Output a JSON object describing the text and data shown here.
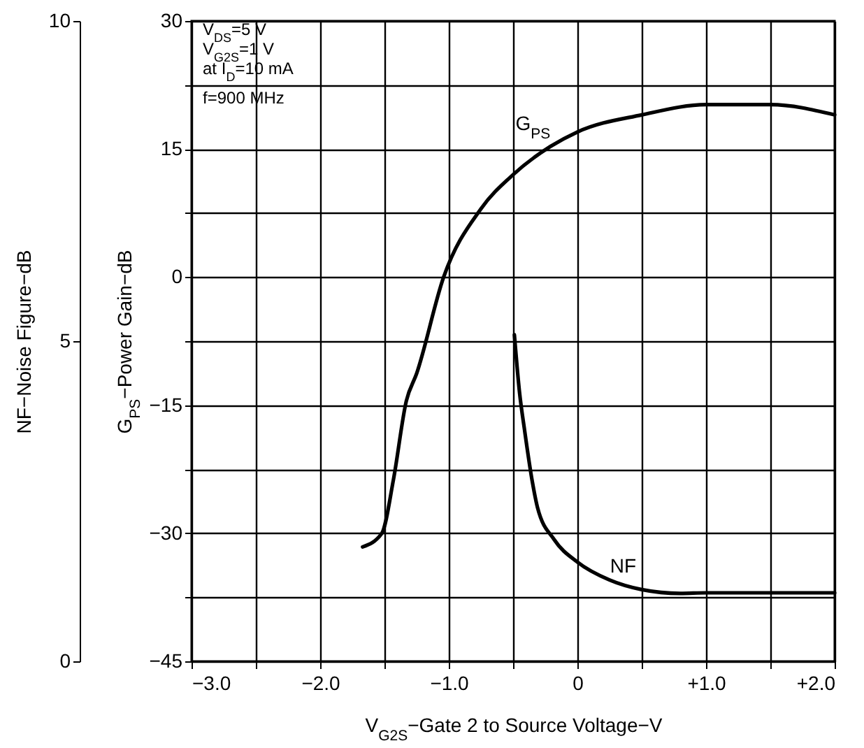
{
  "chart_data": {
    "type": "line",
    "xlabel": "V$_{G2S}$−Gate 2 to Source Voltage−V",
    "ylabel": "G$_{PS}$−Power Gain−dB",
    "y2label": "NF−Noise Figure−dB",
    "annotations": [
      "V$_{DS}$=5 V",
      "V$_{G2S}$=1 V",
      "at  I$_{D}$=10 mA",
      "f=900 MHz"
    ],
    "xlim": [
      -3,
      2
    ],
    "xticks": [
      {
        "value": -3,
        "label": "−3.0"
      },
      {
        "value": -2.5,
        "label": null
      },
      {
        "value": -2,
        "label": "−2.0"
      },
      {
        "value": -1.5,
        "label": null
      },
      {
        "value": -1,
        "label": "−1.0"
      },
      {
        "value": -0.5,
        "label": null
      },
      {
        "value": 0,
        "label": "0"
      },
      {
        "value": 0.5,
        "label": null
      },
      {
        "value": 1,
        "label": "+1.0"
      },
      {
        "value": 1.5,
        "label": null
      },
      {
        "value": 2,
        "label": "+2.0"
      }
    ],
    "ylim": [
      -45,
      30
    ],
    "yticks": [
      {
        "value": -45,
        "label": "−45"
      },
      {
        "value": -37.5,
        "label": null
      },
      {
        "value": -30,
        "label": "−30"
      },
      {
        "value": -22.5,
        "label": null
      },
      {
        "value": -15,
        "label": "−15"
      },
      {
        "value": -7.5,
        "label": null
      },
      0,
      {
        "value": 7.5,
        "label": null
      },
      15,
      {
        "value": 22.5,
        "label": null
      },
      30
    ],
    "y2lim": [
      0,
      10
    ],
    "y2ticks": [
      0,
      5,
      10
    ],
    "grid": true,
    "line_style": "solid",
    "marker": "none",
    "series": [
      {
        "name": "G$_{PS}$",
        "color": "#000000",
        "x": [
          -1.67,
          -1.52,
          -1.43,
          -1.33,
          -1.25,
          -1.04,
          -0.75,
          -0.5,
          -0.21,
          0,
          0.5,
          1,
          1.5,
          2
        ],
        "values": [
          -31.6,
          -30,
          -23.7,
          -14.5,
          -11.3,
          0,
          8,
          12,
          15.3,
          17,
          19,
          20.2,
          20.2,
          19
        ]
      },
      {
        "name": "NF",
        "color": "#000000",
        "axis": "y2",
        "x": [
          -0.49,
          -0.45,
          -0.41,
          -0.35,
          -0.31,
          -0.18,
          0,
          0.25,
          0.5,
          0.8,
          1,
          1.5,
          2
        ],
        "values": [
          5.1,
          4.2,
          3.6,
          2.8,
          2.4,
          1.9,
          1.55,
          1.27,
          1.12,
          1.06,
          1.07,
          1.07,
          1.07
        ]
      }
    ]
  }
}
